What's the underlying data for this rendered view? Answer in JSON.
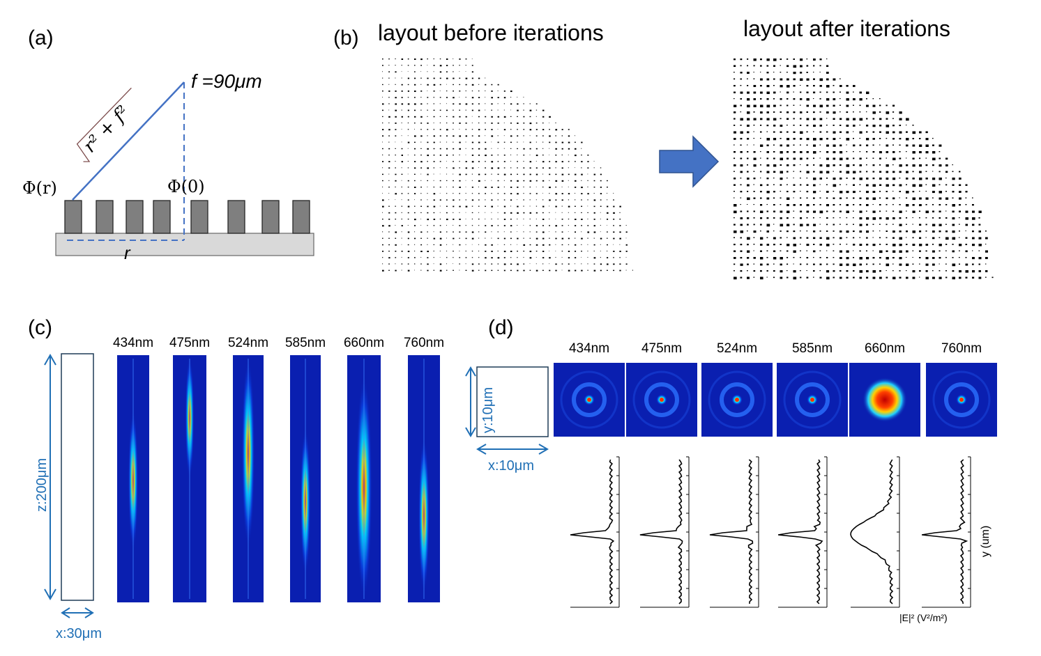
{
  "colors": {
    "accent_blue": "#1f6fb5",
    "line_blue": "#4472c4",
    "pillar": "#7f7f7f",
    "substrate": "#d9d9d9",
    "field_bg": "#0a1fb0",
    "root_brown": "#7b4a4a"
  },
  "panel_a": {
    "label": "(a)",
    "focal": "f =90μm",
    "phi_r": "Φ(r)",
    "phi_0": "Φ(0)",
    "r_label": "r",
    "sqrt_expr": "r² + f²"
  },
  "panel_b": {
    "label": "(b)",
    "before_title": "layout before iterations",
    "after_title": "layout after iterations",
    "arrow_icon": "right-arrow-icon"
  },
  "panel_c": {
    "label": "(c)",
    "wavelengths": [
      "434nm",
      "475nm",
      "524nm",
      "585nm",
      "660nm",
      "760nm"
    ],
    "z_dim": "z:200μm",
    "x_dim": "x:30μm"
  },
  "panel_d": {
    "label": "(d)",
    "wavelengths": [
      "434nm",
      "475nm",
      "524nm",
      "585nm",
      "660nm",
      "760nm"
    ],
    "y_dim": "y:10μm",
    "x_dim": "x:10μm",
    "xlabel": "|E|² (V²/m²)",
    "ylabel": "y (um)"
  }
}
